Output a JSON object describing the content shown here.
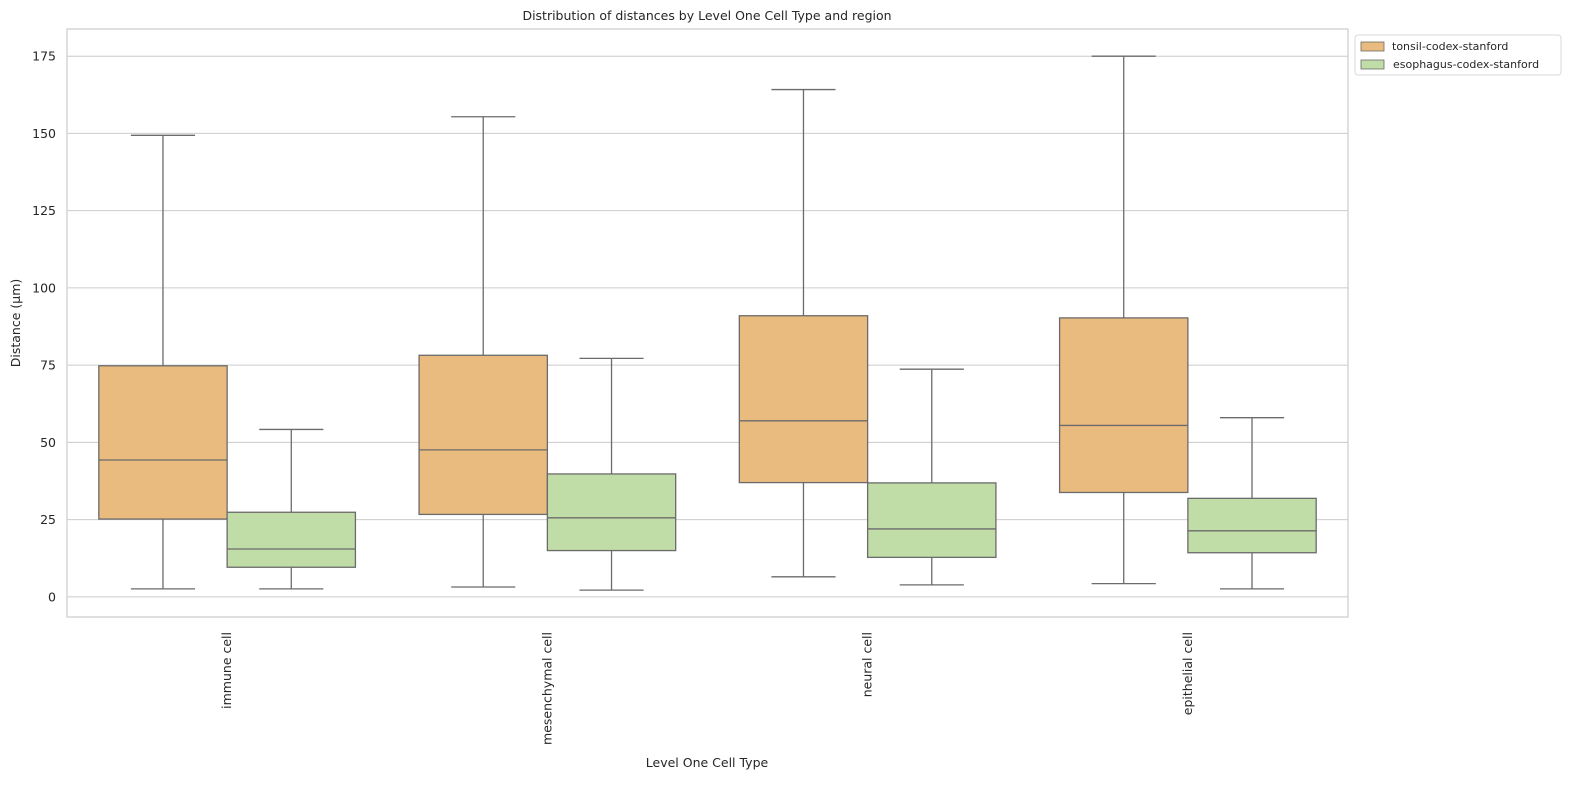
{
  "chart_data": {
    "type": "box",
    "title": "Distribution of distances by Level One Cell Type and region",
    "xlabel": "Level One Cell Type",
    "ylabel": "Distance (µm)",
    "ylim": [
      -6.5,
      183.8
    ],
    "yticks": [
      0,
      25,
      50,
      75,
      100,
      125,
      150,
      175
    ],
    "grid": true,
    "legend_position": "outside-top-right",
    "categories": [
      "immune cell",
      "mesenchymal cell",
      "neural cell",
      "epithelial cell"
    ],
    "series": [
      {
        "name": "tonsil-codex-stanford",
        "color": "#eabb7f",
        "boxes": [
          {
            "whislo": 2.6,
            "q1": 25.2,
            "med": 44.3,
            "q3": 74.8,
            "whishi": 149.4
          },
          {
            "whislo": 3.2,
            "q1": 26.7,
            "med": 47.6,
            "q3": 78.2,
            "whishi": 155.4
          },
          {
            "whislo": 6.5,
            "q1": 37.0,
            "med": 57.0,
            "q3": 91.0,
            "whishi": 164.2
          },
          {
            "whislo": 4.3,
            "q1": 33.8,
            "med": 55.5,
            "q3": 90.3,
            "whishi": 175.0
          }
        ]
      },
      {
        "name": "esophagus-codex-stanford",
        "color": "#c0dca7",
        "boxes": [
          {
            "whislo": 2.6,
            "q1": 9.6,
            "med": 15.5,
            "q3": 27.4,
            "whishi": 54.2
          },
          {
            "whislo": 2.2,
            "q1": 15.0,
            "med": 25.6,
            "q3": 39.8,
            "whishi": 77.2
          },
          {
            "whislo": 3.9,
            "q1": 12.8,
            "med": 22.0,
            "q3": 36.9,
            "whishi": 73.7
          },
          {
            "whislo": 2.6,
            "q1": 14.3,
            "med": 21.4,
            "q3": 31.9,
            "whishi": 58.0
          }
        ]
      }
    ],
    "colors": {
      "grid": "#cccccc",
      "spine": "#cccccc",
      "box_edge": "#6b6b6b",
      "text": "#262626"
    }
  }
}
